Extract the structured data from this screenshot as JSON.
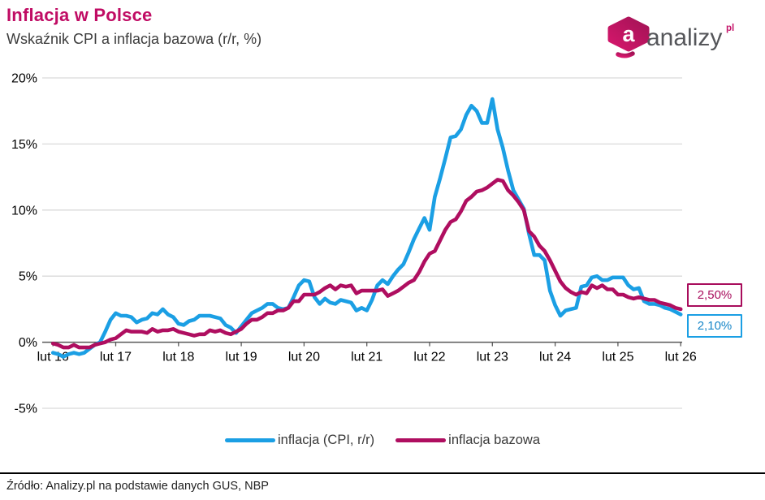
{
  "header": {
    "title": "Inflacja w Polsce",
    "subtitle": "Wskaźnik CPI a inflacja bazowa (r/r, %)"
  },
  "logo": {
    "glyph": "a",
    "text": "analizy",
    "suffix": "pl",
    "color_dark": "#A31356",
    "color_bright": "#D6176C",
    "text_color": "#55565A"
  },
  "chart_data": {
    "type": "line",
    "title": "Inflacja w Polsce",
    "subtitle": "Wskaźnik CPI a inflacja bazowa (r/r, %)",
    "xlabel": "",
    "ylabel": "",
    "ylim": [
      -5,
      20
    ],
    "grid": "horizontal",
    "legend_position": "bottom",
    "y_ticks": [
      20,
      15,
      10,
      5,
      0,
      -5
    ],
    "y_tick_labels": [
      "20%",
      "15%",
      "10%",
      "5%",
      "0%",
      "-5%"
    ],
    "x_tick_labels": [
      "lut 16",
      "lut 17",
      "lut 18",
      "lut 19",
      "lut 20",
      "lut 21",
      "lut 22",
      "lut 23",
      "lut 24",
      "lut 25",
      "lut 26"
    ],
    "points_per_year": 12,
    "series": [
      {
        "name": "inflacja (CPI, r/r)",
        "color": "#1B9FE4",
        "end_label": "2,10%",
        "values": [
          -0.8,
          -0.9,
          -1.1,
          -0.9,
          -0.8,
          -0.9,
          -0.8,
          -0.5,
          -0.2,
          0.0,
          0.8,
          1.7,
          2.2,
          2.0,
          2.0,
          1.9,
          1.5,
          1.7,
          1.8,
          2.2,
          2.1,
          2.5,
          2.1,
          1.9,
          1.4,
          1.3,
          1.6,
          1.7,
          2.0,
          2.0,
          2.0,
          1.9,
          1.8,
          1.3,
          1.1,
          0.7,
          1.2,
          1.7,
          2.2,
          2.4,
          2.6,
          2.9,
          2.9,
          2.6,
          2.5,
          2.6,
          3.4,
          4.3,
          4.7,
          4.6,
          3.4,
          2.9,
          3.3,
          3.0,
          2.9,
          3.2,
          3.1,
          3.0,
          2.4,
          2.6,
          2.4,
          3.2,
          4.3,
          4.7,
          4.4,
          5.0,
          5.5,
          5.9,
          6.8,
          7.8,
          8.6,
          9.4,
          8.5,
          11.0,
          12.4,
          13.9,
          15.5,
          15.6,
          16.1,
          17.2,
          17.9,
          17.5,
          16.6,
          16.6,
          18.4,
          16.1,
          14.7,
          13.0,
          11.5,
          10.8,
          10.1,
          8.2,
          6.6,
          6.6,
          6.2,
          3.9,
          2.8,
          2.0,
          2.4,
          2.5,
          2.6,
          4.2,
          4.3,
          4.9,
          5.0,
          4.7,
          4.7,
          4.9,
          4.9,
          4.9,
          4.3,
          4.0,
          4.1,
          3.1,
          2.9,
          2.9,
          2.8,
          2.6,
          2.5,
          2.3,
          2.1
        ]
      },
      {
        "name": "inflacja bazowa",
        "color": "#AF0E60",
        "end_label": "2,50%",
        "values": [
          -0.1,
          -0.2,
          -0.4,
          -0.4,
          -0.2,
          -0.4,
          -0.4,
          -0.4,
          -0.2,
          -0.1,
          0.0,
          0.2,
          0.3,
          0.6,
          0.9,
          0.8,
          0.8,
          0.8,
          0.7,
          1.0,
          0.8,
          0.9,
          0.9,
          1.0,
          0.8,
          0.7,
          0.6,
          0.5,
          0.6,
          0.6,
          0.9,
          0.8,
          0.9,
          0.7,
          0.6,
          0.8,
          1.0,
          1.4,
          1.7,
          1.7,
          1.9,
          2.2,
          2.2,
          2.4,
          2.4,
          2.6,
          3.1,
          3.1,
          3.6,
          3.6,
          3.6,
          3.8,
          4.1,
          4.3,
          4.0,
          4.3,
          4.2,
          4.3,
          3.7,
          3.9,
          3.9,
          3.9,
          3.9,
          4.0,
          3.5,
          3.7,
          3.9,
          4.2,
          4.5,
          4.7,
          5.3,
          6.1,
          6.7,
          6.9,
          7.7,
          8.5,
          9.1,
          9.3,
          9.9,
          10.7,
          11.0,
          11.4,
          11.5,
          11.7,
          12.0,
          12.3,
          12.2,
          11.5,
          11.1,
          10.6,
          10.0,
          8.4,
          8.0,
          7.3,
          6.9,
          6.2,
          5.4,
          4.6,
          4.1,
          3.8,
          3.6,
          3.8,
          3.7,
          4.3,
          4.1,
          4.3,
          4.0,
          4.0,
          3.6,
          3.6,
          3.4,
          3.3,
          3.4,
          3.3,
          3.2,
          3.2,
          3.0,
          2.9,
          2.8,
          2.6,
          2.5
        ]
      }
    ],
    "colors": {
      "gridline": "#D9D9D9",
      "axis": "#595959",
      "tick_text": "#000000"
    }
  },
  "footer": {
    "source": "Źródło: Analizy.pl na podstawie danych GUS, NBP"
  }
}
